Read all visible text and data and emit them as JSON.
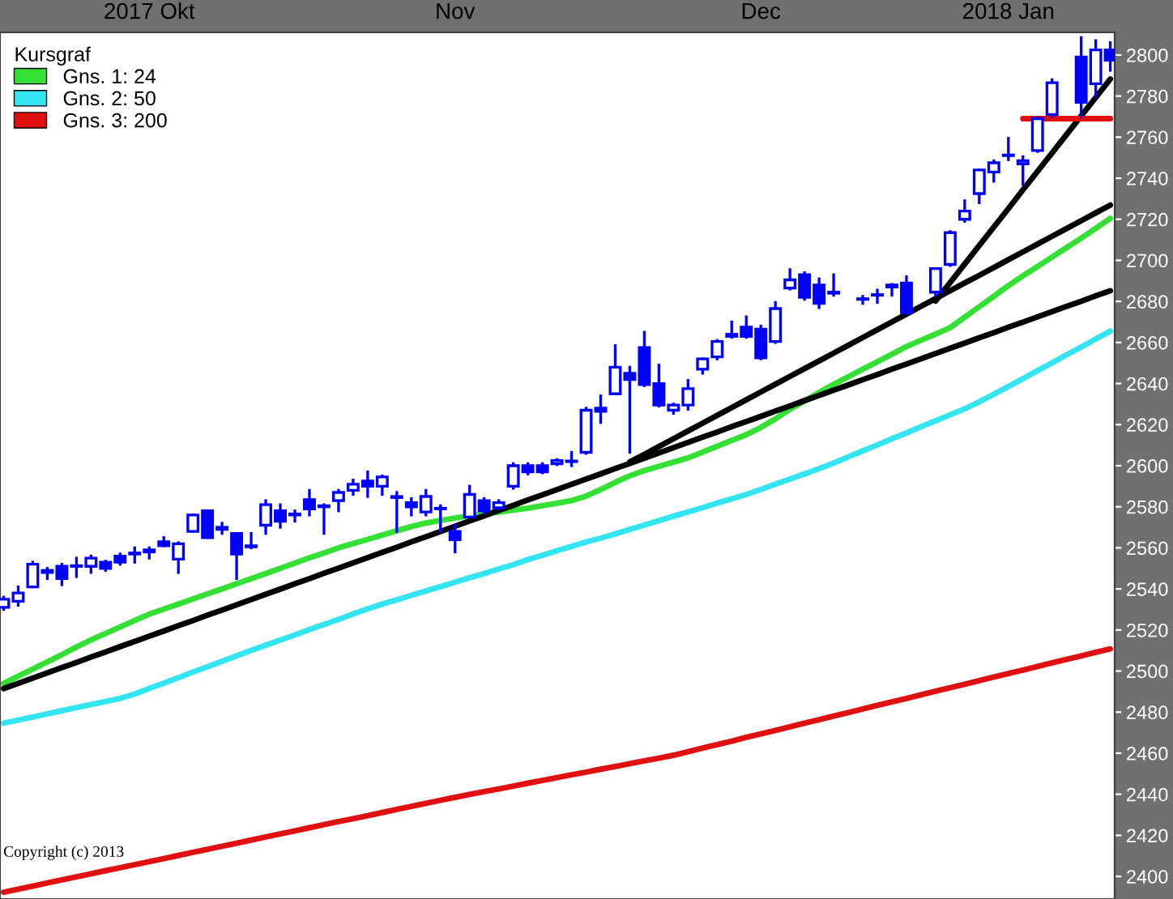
{
  "chart_data": {
    "type": "candlestick",
    "categories": [
      null,
      null,
      null,
      null,
      null,
      null,
      null,
      null,
      null,
      null,
      "2017 Okt",
      null,
      null,
      null,
      null,
      null,
      null,
      null,
      null,
      null,
      null,
      null,
      null,
      null,
      null,
      null,
      null,
      null,
      null,
      null,
      null,
      "Nov",
      null,
      null,
      null,
      null,
      null,
      null,
      null,
      null,
      null,
      null,
      null,
      null,
      null,
      null,
      null,
      null,
      null,
      null,
      null,
      null,
      "Dec",
      null,
      null,
      null,
      null,
      null,
      null,
      null,
      null,
      null,
      null,
      null,
      null,
      null,
      null,
      null,
      null,
      "2018 Jan",
      null,
      null,
      null,
      null,
      null,
      null,
      null
    ],
    "legend_title": "Kursgraf",
    "legend": "top left",
    "grid": false,
    "ylim": [
      2389,
      2811
    ],
    "yticks": [
      2400,
      2420,
      2440,
      2460,
      2480,
      2500,
      2520,
      2540,
      2560,
      2580,
      2600,
      2620,
      2640,
      2660,
      2680,
      2700,
      2720,
      2740,
      2760,
      2780,
      2800
    ],
    "annotations": [
      "Copyright (c) 2013"
    ],
    "series": [
      {
        "type": "candlestick",
        "color": "#0000ff",
        "ohlc": [
          [
            2531,
            2536,
            2530,
            2535
          ],
          [
            2534,
            2541,
            2532,
            2538
          ],
          [
            2541,
            2553,
            2541,
            2552
          ],
          [
            2548,
            2550,
            2545,
            2549
          ],
          [
            2551,
            2552,
            2542,
            2545
          ],
          [
            2551,
            2555,
            2546,
            2551
          ],
          [
            2551,
            2556,
            2548,
            2555
          ],
          [
            2553,
            2553.5,
            2549,
            2550
          ],
          [
            2556,
            2557,
            2552,
            2553
          ],
          [
            2557,
            2560,
            2553,
            2557.5
          ],
          [
            2558,
            2560,
            2555,
            2559
          ],
          [
            2563,
            2565,
            2561,
            2561
          ],
          [
            2554.5,
            2562.5,
            2548,
            2562
          ],
          [
            2568,
            2576,
            2568,
            2576
          ],
          [
            2578,
            2578,
            2565,
            2565
          ],
          [
            2569,
            2572,
            2567,
            2570
          ],
          [
            2567,
            2567,
            2545,
            2557
          ],
          [
            2560.5,
            2567,
            2560,
            2561
          ],
          [
            2571,
            2583,
            2567,
            2581
          ],
          [
            2578,
            2581,
            2570,
            2573
          ],
          [
            2576,
            2578,
            2573,
            2576.5
          ],
          [
            2583.5,
            2588,
            2576,
            2579
          ],
          [
            2580,
            2581,
            2567,
            2580.5
          ],
          [
            2583,
            2588,
            2578,
            2587
          ],
          [
            2588,
            2593,
            2586,
            2591
          ],
          [
            2592.5,
            2597,
            2585,
            2590
          ],
          [
            2590,
            2595,
            2586,
            2594.5
          ],
          [
            2584.5,
            2587,
            2568,
            2585
          ],
          [
            2582,
            2584,
            2576,
            2580
          ],
          [
            2577.5,
            2588,
            2576,
            2585
          ],
          [
            2579,
            2580.5,
            2568,
            2579
          ],
          [
            2568,
            2571,
            2558,
            2564
          ],
          [
            2575,
            2590,
            2575,
            2586
          ],
          [
            2583,
            2584,
            2577,
            2578
          ],
          [
            2579.5,
            2583,
            2579,
            2582
          ],
          [
            2590,
            2601,
            2589,
            2600
          ],
          [
            2600,
            2601,
            2596,
            2597
          ],
          [
            2600,
            2601,
            2596.5,
            2597
          ],
          [
            2601,
            2603,
            2600.5,
            2602.5
          ],
          [
            2602,
            2606.5,
            2600,
            2602
          ],
          [
            2606.5,
            2628,
            2606,
            2627
          ],
          [
            2628,
            2634,
            2621,
            2626.5
          ],
          [
            2635,
            2658.5,
            2635,
            2648
          ],
          [
            2645,
            2648,
            2606.5,
            2642
          ],
          [
            2657.5,
            2665,
            2639,
            2639.5
          ],
          [
            2640,
            2649,
            2629,
            2629.5
          ],
          [
            2627,
            2630,
            2625.5,
            2629.5
          ],
          [
            2629.5,
            2641.5,
            2627.5,
            2637.5
          ],
          [
            2647,
            2652,
            2645,
            2652
          ],
          [
            2653,
            2661,
            2652,
            2660.5
          ],
          [
            2663,
            2670,
            2662.5,
            2664
          ],
          [
            2667.5,
            2672.5,
            2662.5,
            2663
          ],
          [
            2666.5,
            2668,
            2652,
            2652.5
          ],
          [
            2660.5,
            2679.5,
            2660,
            2676.5
          ],
          [
            2686.5,
            2695.5,
            2686,
            2690.5
          ],
          [
            2693,
            2694,
            2681,
            2682
          ],
          [
            2688,
            2691,
            2677,
            2679
          ],
          [
            2684.5,
            2693,
            2683,
            2684
          ],
          null,
          [
            2681,
            2682.5,
            2679,
            2681
          ],
          [
            2683,
            2685.5,
            2679.5,
            2683
          ],
          [
            2687,
            2688.3,
            2683,
            2688
          ],
          [
            2689,
            2692,
            2674,
            2674.5
          ],
          null,
          [
            2684.5,
            2696,
            2683,
            2696
          ],
          [
            2698,
            2714,
            2697.5,
            2713.5
          ],
          [
            2720,
            2729,
            2719,
            2724
          ],
          [
            2732.5,
            2744,
            2728,
            2744
          ],
          [
            2743,
            2748.5,
            2738.5,
            2747.5
          ],
          [
            2751,
            2759.5,
            2749,
            2751
          ],
          [
            2747,
            2750.5,
            2737,
            2748.5
          ],
          [
            2753.5,
            2769.5,
            2753,
            2769
          ],
          [
            2771,
            2788,
            2770,
            2786.5
          ],
          null,
          [
            2799,
            2808.5,
            2770,
            2777
          ],
          [
            2786,
            2807,
            2779.5,
            2802.5
          ],
          [
            2802.5,
            2806,
            2792.5,
            2797.5
          ]
        ]
      },
      {
        "name": "Gns. 1: 24",
        "type": "line",
        "color": "#33e033",
        "values": [
          2494,
          2497.5,
          2501,
          2504.5,
          2508,
          2511.7,
          2515.2,
          2518.3,
          2521.5,
          2524.6,
          2527.7,
          2530.2,
          2532.6,
          2535.1,
          2537.6,
          2540,
          2542.5,
          2545,
          2547.5,
          2550,
          2552.6,
          2555.1,
          2557.5,
          2560,
          2562.1,
          2564.1,
          2566.2,
          2568.3,
          2570.4,
          2572.1,
          2573.3,
          2574.5,
          2575.6,
          2576.5,
          2577.4,
          2578.4,
          2579.3,
          2580.5,
          2581.7,
          2583,
          2585.2,
          2588.4,
          2591.9,
          2595.1,
          2597.6,
          2599.7,
          2601.7,
          2603.8,
          2606.6,
          2609.5,
          2612.3,
          2615.1,
          2618.6,
          2622.8,
          2627.5,
          2631.5,
          2635.7,
          2639.6,
          2643.3,
          2647,
          2650.6,
          2654.3,
          2658,
          2661.1,
          2664.1,
          2667.2,
          2672.3,
          2677.4,
          2682.5,
          2687.7,
          2692.4,
          2697,
          2701.6,
          2706.2,
          2710.8,
          2715.6,
          2720.4
        ]
      },
      {
        "name": "Gns. 2: 50",
        "type": "line",
        "color": "#33e5f0",
        "values": [
          2474.6,
          2476.1,
          2477.6,
          2479.2,
          2480.7,
          2482.2,
          2483.7,
          2485.2,
          2486.7,
          2488.8,
          2491.5,
          2494.1,
          2496.8,
          2499.5,
          2502.1,
          2504.8,
          2507.4,
          2510.1,
          2512.6,
          2515.1,
          2517.6,
          2520.2,
          2522.7,
          2525.2,
          2527.8,
          2530.3,
          2532.6,
          2534.7,
          2536.9,
          2539,
          2541.1,
          2543.3,
          2545.4,
          2547.5,
          2549.7,
          2551.8,
          2554.3,
          2556.4,
          2558.6,
          2560.7,
          2562.9,
          2564.7,
          2566.8,
          2569,
          2571.1,
          2573.2,
          2575.4,
          2577.5,
          2579.6,
          2581.8,
          2583.9,
          2586,
          2588.5,
          2591,
          2593.5,
          2596,
          2598.5,
          2601.3,
          2604.3,
          2607.2,
          2610.1,
          2613.1,
          2616,
          2619,
          2621.9,
          2624.8,
          2627.7,
          2631.1,
          2634.8,
          2638.6,
          2642.4,
          2646.3,
          2650.1,
          2654,
          2657.8,
          2661.7,
          2665.5
        ]
      },
      {
        "name": "Gns. 3: 200",
        "type": "line",
        "color": "#e01010",
        "values": [
          2392.3,
          2393.8,
          2395.3,
          2396.8,
          2398.3,
          2399.8,
          2401.3,
          2402.8,
          2404.2,
          2405.7,
          2407.2,
          2408.7,
          2410.2,
          2411.7,
          2413.2,
          2414.7,
          2416.2,
          2417.7,
          2419.2,
          2420.7,
          2422.2,
          2423.7,
          2425.2,
          2426.7,
          2428.1,
          2429.6,
          2431.1,
          2432.6,
          2434.1,
          2435.6,
          2437.1,
          2438.5,
          2439.9,
          2441.3,
          2442.6,
          2444,
          2445.4,
          2446.7,
          2448.1,
          2449.5,
          2450.8,
          2452.2,
          2453.5,
          2454.9,
          2456.3,
          2457.6,
          2459,
          2460.7,
          2462.5,
          2464.2,
          2465.9,
          2467.7,
          2469.4,
          2471.1,
          2472.9,
          2474.6,
          2476.3,
          2478.1,
          2479.8,
          2481.5,
          2483.3,
          2485,
          2486.7,
          2488.4,
          2490.2,
          2491.9,
          2493.6,
          2495.3,
          2497.1,
          2498.8,
          2500.5,
          2502.2,
          2504,
          2505.7,
          2507.4,
          2509.1,
          2510.8
        ]
      },
      {
        "type": "line",
        "color": "#000000",
        "values": [
          2491.5,
          2494.0,
          2496.6,
          2499.1,
          2501.7,
          2504.2,
          2506.8,
          2509.3,
          2511.9,
          2514.4,
          2517.0,
          2519.5,
          2522.1,
          2524.6,
          2527.2,
          2529.7,
          2532.3,
          2534.8,
          2537.4,
          2539.9,
          2542.5,
          2545.0,
          2547.6,
          2550.1,
          2552.7,
          2555.2,
          2557.8,
          2560.3,
          2562.9,
          2565.4,
          2568.0,
          2570.5,
          2573.1,
          2575.6,
          2578.2,
          2580.7,
          2583.3,
          2585.8,
          2588.4,
          2590.9,
          2593.5,
          2596.0,
          2598.6,
          2601.1,
          2603.7,
          2606.2,
          2608.8,
          2611.3,
          2613.9,
          2616.4,
          2619.0,
          2621.5,
          2624.0,
          2626.6,
          2629.1,
          2631.7,
          2634.2,
          2636.8,
          2639.3,
          2641.9,
          2644.4,
          2647.0,
          2649.5,
          2652.1,
          2654.6,
          2657.2,
          2659.7,
          2662.3,
          2664.8,
          2667.4,
          2669.9,
          2672.5,
          2675.0,
          2677.6,
          2680.1,
          2682.7,
          2685.2
        ]
      },
      {
        "type": "line",
        "color": "#000000",
        "values": [
          null,
          null,
          null,
          null,
          null,
          null,
          null,
          null,
          null,
          null,
          null,
          null,
          null,
          null,
          null,
          null,
          null,
          null,
          null,
          null,
          null,
          null,
          null,
          null,
          null,
          null,
          null,
          null,
          null,
          null,
          null,
          null,
          null,
          null,
          null,
          null,
          null,
          null,
          null,
          null,
          null,
          null,
          null,
          2601.8,
          2605.5,
          2609.3,
          2613.1,
          2616.9,
          2620.7,
          2624.5,
          2628.3,
          2632.1,
          2635.9,
          2639.7,
          2643.5,
          2647.3,
          2651.0,
          2654.8,
          2658.6,
          2662.4,
          2666.2,
          2670.0,
          2673.8,
          2677.6,
          2681.4,
          2685.2,
          2689.0,
          2692.7,
          2696.5,
          2700.3,
          2704.1,
          2707.9,
          2711.7,
          2715.5,
          2719.3,
          2723.1,
          2726.9
        ]
      },
      {
        "type": "line",
        "color": "#000000",
        "values": [
          null,
          null,
          null,
          null,
          null,
          null,
          null,
          null,
          null,
          null,
          null,
          null,
          null,
          null,
          null,
          null,
          null,
          null,
          null,
          null,
          null,
          null,
          null,
          null,
          null,
          null,
          null,
          null,
          null,
          null,
          null,
          null,
          null,
          null,
          null,
          null,
          null,
          null,
          null,
          null,
          null,
          null,
          null,
          null,
          null,
          null,
          null,
          null,
          null,
          null,
          null,
          null,
          null,
          null,
          null,
          null,
          null,
          null,
          null,
          null,
          null,
          null,
          null,
          null,
          2680.2,
          2689.2,
          2698.2,
          2707.2,
          2716.2,
          2725.2,
          2734.3,
          2743.3,
          2752.3,
          2761.3,
          2770.3,
          2779.3,
          2788.3
        ]
      },
      {
        "type": "line",
        "color": "#e01010",
        "values": [
          null,
          null,
          null,
          null,
          null,
          null,
          null,
          null,
          null,
          null,
          null,
          null,
          null,
          null,
          null,
          null,
          null,
          null,
          null,
          null,
          null,
          null,
          null,
          null,
          null,
          null,
          null,
          null,
          null,
          null,
          null,
          null,
          null,
          null,
          null,
          null,
          null,
          null,
          null,
          null,
          null,
          null,
          null,
          null,
          null,
          null,
          null,
          null,
          null,
          null,
          null,
          null,
          null,
          null,
          null,
          null,
          null,
          null,
          null,
          null,
          null,
          null,
          null,
          null,
          null,
          null,
          null,
          null,
          null,
          null,
          2769,
          2769,
          2769,
          2769,
          2769,
          2769,
          2769
        ]
      }
    ]
  }
}
